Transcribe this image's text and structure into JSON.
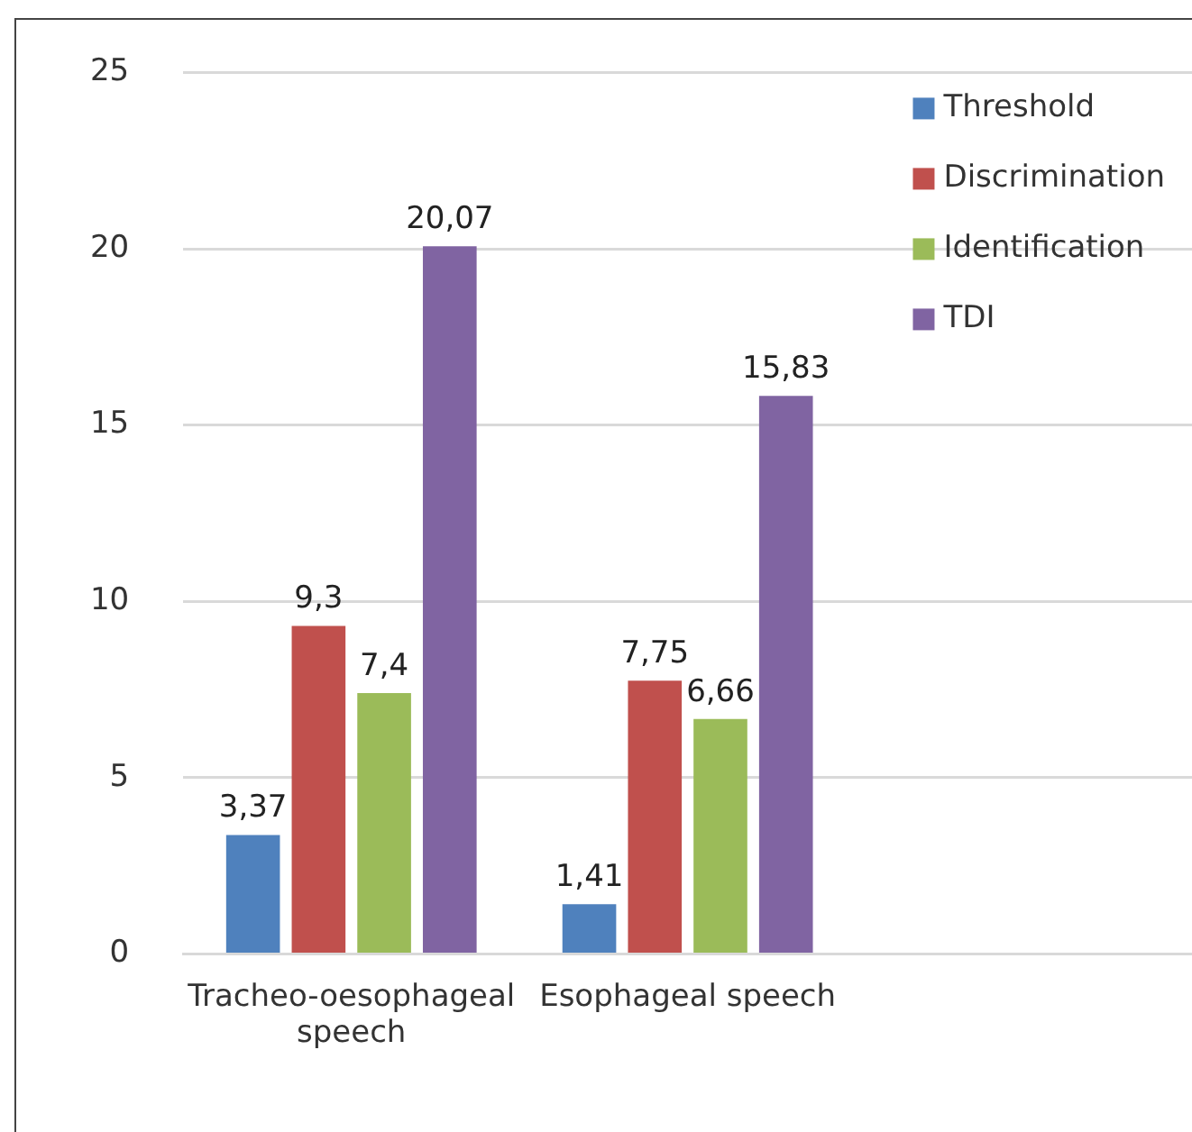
{
  "chart_data": {
    "type": "bar",
    "categories": [
      "Tracheo-oesophageal speech",
      "Esophageal speech",
      null
    ],
    "series": [
      {
        "name": "Threshold",
        "color": "#4f81bd",
        "values": [
          3.37,
          1.41,
          null
        ],
        "value_labels": [
          "3,37",
          "1,41",
          null
        ]
      },
      {
        "name": "Discrimination",
        "color": "#c0504d",
        "values": [
          9.3,
          7.75,
          null
        ],
        "value_labels": [
          "9,3",
          "7,75",
          null
        ]
      },
      {
        "name": "Identification",
        "color": "#9bbb59",
        "values": [
          7.4,
          6.66,
          null
        ],
        "value_labels": [
          "7,4",
          "6,66",
          null
        ]
      },
      {
        "name": "TDI",
        "color": "#8064a2",
        "values": [
          20.07,
          15.83,
          null
        ],
        "value_labels": [
          "20,07",
          "15,83",
          null
        ]
      }
    ],
    "ylim": [
      0,
      25
    ],
    "yticks": [
      0,
      5,
      10,
      15,
      20,
      25
    ],
    "grid": "y",
    "legend": "top right"
  }
}
